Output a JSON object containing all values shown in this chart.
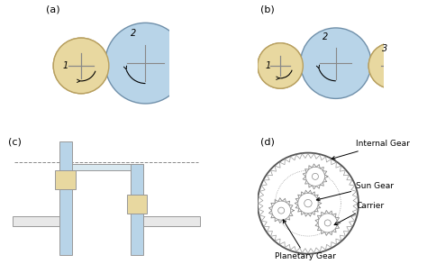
{
  "bg_color": "#ffffff",
  "gear_yellow": "#e8d8a0",
  "gear_yellow_edge": "#b8a060",
  "gear_blue": "#b8d4e8",
  "gear_blue_edge": "#7090aa",
  "shaft_blue": "#b8d4e8",
  "shaft_yellow": "#e8d8a0",
  "shaft_edge": "#999999",
  "cross_bar_color": "#e8e8e8",
  "cross_bar_edge": "#999999",
  "panel_a_label": "(a)",
  "panel_b_label": "(b)",
  "panel_c_label": "(c)",
  "panel_d_label": "(d)",
  "gear1_label": "1",
  "gear2_label": "2",
  "gear3_label": "3",
  "internal_gear_label": "Internal Gear",
  "sun_gear_label": "Sun Gear",
  "carrier_label": "Carrier",
  "planetary_gear_label": "Planetary Gear"
}
